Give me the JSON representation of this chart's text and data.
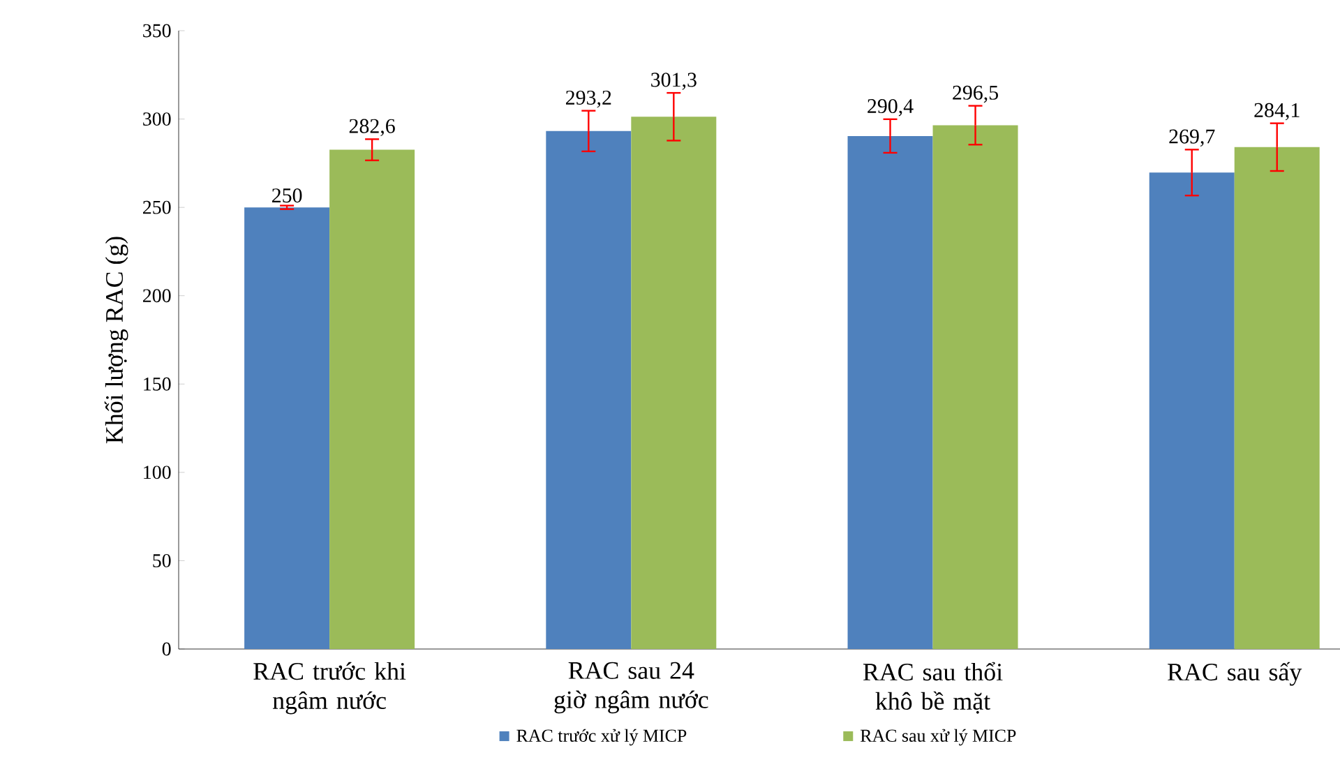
{
  "chart_data": {
    "type": "bar",
    "ylabel": "Khối lượng RAC (g)",
    "categories": [
      "RAC trước khi ngâm nước",
      "RAC sau 24 giờ ngâm nước",
      "RAC sau thổi khô bề mặt",
      "RAC sau sấy"
    ],
    "series": [
      {
        "name": "RAC trước xử lý MICP",
        "color": "#4f81bd",
        "values": [
          250,
          293.2,
          290.4,
          269.7
        ],
        "errors": [
          1,
          11.5,
          9.5,
          13
        ],
        "value_labels": [
          "250",
          "293,2",
          "290,4",
          "269,7"
        ]
      },
      {
        "name": "RAC sau xử lý MICP",
        "color": "#9bbb59",
        "values": [
          282.6,
          301.3,
          296.5,
          284.1
        ],
        "errors": [
          6,
          13.5,
          11,
          13.5
        ],
        "value_labels": [
          "282,6",
          "301,3",
          "296,5",
          "284,1"
        ]
      }
    ],
    "ylim": [
      0,
      350
    ],
    "yticks": [
      0,
      50,
      100,
      150,
      200,
      250,
      300,
      350
    ],
    "grid": false,
    "legend": "bottom"
  }
}
